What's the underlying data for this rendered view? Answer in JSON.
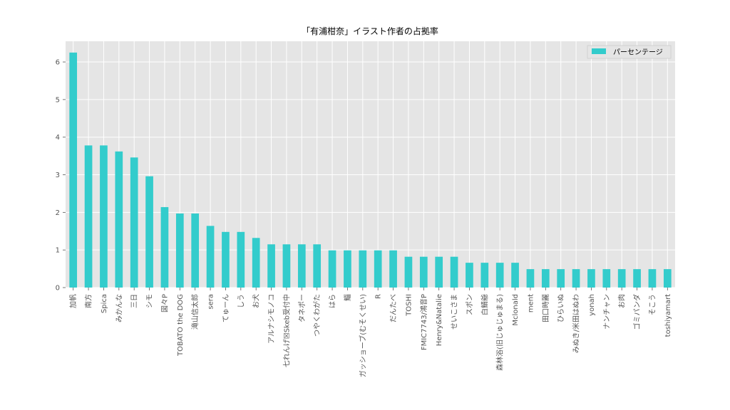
{
  "chart_data": {
    "type": "bar",
    "title": "「有浦柑奈」イラスト作者の占拠率",
    "xlabel": "",
    "ylabel": "",
    "ylim": [
      0,
      6.55
    ],
    "yticks": [
      0,
      1,
      2,
      3,
      4,
      5,
      6
    ],
    "grid": true,
    "legend_position": "top-right",
    "bar_color": "#33CCCC",
    "background_color": "#E5E5E5",
    "grid_color": "#FFFFFF",
    "categories": [
      "加帆",
      "南方",
      "Spica",
      "みかんな",
      "三日",
      "シモ",
      "図々P",
      "TOBATO the DOG",
      "滝山信太郎",
      "sera",
      "てゅーん",
      "しう",
      "お犬",
      "アルナシモノコ",
      "七れんげ☒Skeb受付中",
      "タネポー",
      "つやくわがた",
      "はら",
      "鯔",
      "ガッショーブ(むそくせい)",
      "R",
      "だんたべ",
      "TOSHI",
      "FMIC7743/鴻音P",
      "Henry&Natalie",
      "せいこさま",
      "スポン",
      "白鯖爺",
      "森林浴(旧じゅじゅまる)",
      "Mclonald",
      "ment",
      "田口時麗",
      "ひらいぬ",
      "みぬき/米田はぬわ",
      "yonah",
      "ナンチャン",
      "お肉",
      "ゴミパンダ",
      "そこう",
      "toshiyamart"
    ],
    "series": [
      {
        "name": "パーセンテージ",
        "values": [
          6.25,
          3.78,
          3.78,
          3.62,
          3.46,
          2.96,
          2.14,
          1.97,
          1.97,
          1.64,
          1.48,
          1.48,
          1.32,
          1.15,
          1.15,
          1.15,
          1.15,
          0.99,
          0.99,
          0.99,
          0.99,
          0.99,
          0.82,
          0.82,
          0.82,
          0.82,
          0.66,
          0.66,
          0.66,
          0.66,
          0.49,
          0.49,
          0.49,
          0.49,
          0.49,
          0.49,
          0.49,
          0.49,
          0.49,
          0.49
        ]
      }
    ]
  }
}
